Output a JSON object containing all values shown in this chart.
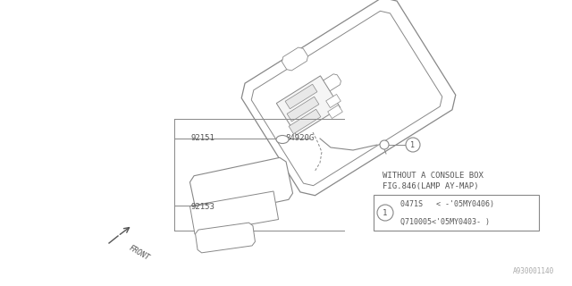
{
  "background_color": "#ffffff",
  "diagram_id": "A930001140",
  "title_line1": "WITHOUT A CONSOLE BOX",
  "title_line2": "FIG.846(LAMP AY-MAP)",
  "callout_row1": "0471S   < -'05MY0406)",
  "callout_row2": "Q710005<'05MY0403- )",
  "front_label": "FRONT",
  "line_color": "#888888",
  "text_color": "#555555"
}
